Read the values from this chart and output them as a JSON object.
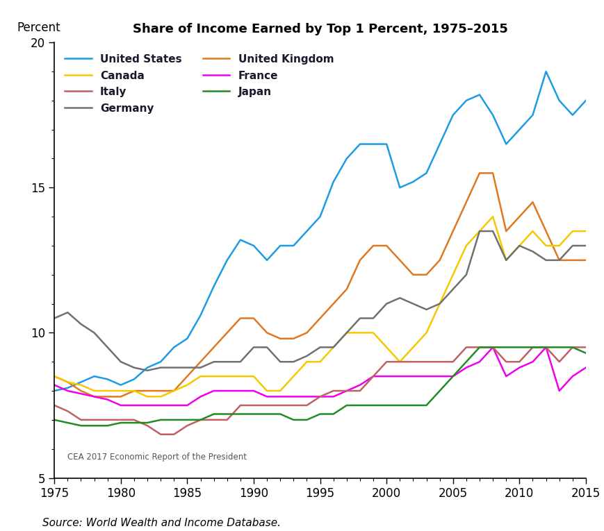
{
  "title": "Share of Income Earned by Top 1 Percent, 1975–2015",
  "ylabel": "Percent",
  "source": "Source: World Wealth and Income Database.",
  "watermark": "CEA 2017 Economic Report of the President",
  "annotation_2015": "2015",
  "ylim": [
    5,
    20
  ],
  "yticks": [
    5,
    10,
    15,
    20
  ],
  "xlim": [
    1975,
    2015
  ],
  "xticks": [
    1975,
    1980,
    1985,
    1990,
    1995,
    2000,
    2005,
    2010,
    2015
  ],
  "series": {
    "United States": {
      "color": "#1B9CE5",
      "years": [
        1975,
        1976,
        1977,
        1978,
        1979,
        1980,
        1981,
        1982,
        1983,
        1984,
        1985,
        1986,
        1987,
        1988,
        1989,
        1990,
        1991,
        1992,
        1993,
        1994,
        1995,
        1996,
        1997,
        1998,
        1999,
        2000,
        2001,
        2002,
        2003,
        2004,
        2005,
        2006,
        2007,
        2008,
        2009,
        2010,
        2011,
        2012,
        2013,
        2014,
        2015
      ],
      "values": [
        8.0,
        8.1,
        8.3,
        8.5,
        8.4,
        8.2,
        8.4,
        8.8,
        9.0,
        9.5,
        9.8,
        10.6,
        11.6,
        12.5,
        13.2,
        13.0,
        12.5,
        13.0,
        13.0,
        13.5,
        14.0,
        15.2,
        16.0,
        16.5,
        16.5,
        16.5,
        15.0,
        15.2,
        15.5,
        16.5,
        17.5,
        18.0,
        18.2,
        17.5,
        16.5,
        17.0,
        17.5,
        19.0,
        18.0,
        17.5,
        18.0
      ]
    },
    "United Kingdom": {
      "color": "#E07820",
      "years": [
        1975,
        1976,
        1977,
        1978,
        1979,
        1980,
        1981,
        1982,
        1983,
        1984,
        1985,
        1986,
        1987,
        1988,
        1989,
        1990,
        1991,
        1992,
        1993,
        1994,
        1995,
        1996,
        1997,
        1998,
        1999,
        2000,
        2001,
        2002,
        2003,
        2004,
        2005,
        2006,
        2007,
        2008,
        2009,
        2010,
        2011,
        2012,
        2013,
        2014,
        2015
      ],
      "values": [
        8.5,
        8.3,
        8.0,
        7.8,
        7.8,
        7.8,
        8.0,
        8.0,
        8.0,
        8.0,
        8.5,
        9.0,
        9.5,
        10.0,
        10.5,
        10.5,
        10.0,
        9.8,
        9.8,
        10.0,
        10.5,
        11.0,
        11.5,
        12.5,
        13.0,
        13.0,
        12.5,
        12.0,
        12.0,
        12.5,
        13.5,
        14.5,
        15.5,
        15.5,
        13.5,
        14.0,
        14.5,
        13.5,
        12.5,
        12.5,
        12.5
      ]
    },
    "Canada": {
      "color": "#F5C800",
      "years": [
        1975,
        1976,
        1977,
        1978,
        1979,
        1980,
        1981,
        1982,
        1983,
        1984,
        1985,
        1986,
        1987,
        1988,
        1989,
        1990,
        1991,
        1992,
        1993,
        1994,
        1995,
        1996,
        1997,
        1998,
        1999,
        2000,
        2001,
        2002,
        2003,
        2004,
        2005,
        2006,
        2007,
        2008,
        2009,
        2010,
        2011,
        2012,
        2013,
        2014,
        2015
      ],
      "values": [
        8.5,
        8.3,
        8.2,
        8.0,
        8.0,
        8.0,
        8.0,
        7.8,
        7.8,
        8.0,
        8.2,
        8.5,
        8.5,
        8.5,
        8.5,
        8.5,
        8.0,
        8.0,
        8.5,
        9.0,
        9.0,
        9.5,
        10.0,
        10.0,
        10.0,
        9.5,
        9.0,
        9.5,
        10.0,
        11.0,
        12.0,
        13.0,
        13.5,
        14.0,
        12.5,
        13.0,
        13.5,
        13.0,
        13.0,
        13.5,
        13.5
      ]
    },
    "France": {
      "color": "#EE00EE",
      "years": [
        1975,
        1976,
        1977,
        1978,
        1979,
        1980,
        1981,
        1982,
        1983,
        1984,
        1985,
        1986,
        1987,
        1988,
        1989,
        1990,
        1991,
        1992,
        1993,
        1994,
        1995,
        1996,
        1997,
        1998,
        1999,
        2000,
        2001,
        2002,
        2003,
        2004,
        2005,
        2006,
        2007,
        2008,
        2009,
        2010,
        2011,
        2012,
        2013,
        2014,
        2015
      ],
      "values": [
        8.2,
        8.0,
        7.9,
        7.8,
        7.7,
        7.5,
        7.5,
        7.5,
        7.5,
        7.5,
        7.5,
        7.8,
        8.0,
        8.0,
        8.0,
        8.0,
        7.8,
        7.8,
        7.8,
        7.8,
        7.8,
        7.8,
        8.0,
        8.2,
        8.5,
        8.5,
        8.5,
        8.5,
        8.5,
        8.5,
        8.5,
        8.8,
        9.0,
        9.5,
        8.5,
        8.8,
        9.0,
        9.5,
        8.0,
        8.5,
        8.8
      ]
    },
    "Italy": {
      "color": "#C06060",
      "years": [
        1975,
        1976,
        1977,
        1978,
        1979,
        1980,
        1981,
        1982,
        1983,
        1984,
        1985,
        1986,
        1987,
        1988,
        1989,
        1990,
        1991,
        1992,
        1993,
        1994,
        1995,
        1996,
        1997,
        1998,
        1999,
        2000,
        2001,
        2002,
        2003,
        2004,
        2005,
        2006,
        2007,
        2008,
        2009,
        2010,
        2011,
        2012,
        2013,
        2014,
        2015
      ],
      "values": [
        7.5,
        7.3,
        7.0,
        7.0,
        7.0,
        7.0,
        7.0,
        6.8,
        6.5,
        6.5,
        6.8,
        7.0,
        7.0,
        7.0,
        7.5,
        7.5,
        7.5,
        7.5,
        7.5,
        7.5,
        7.8,
        8.0,
        8.0,
        8.0,
        8.5,
        9.0,
        9.0,
        9.0,
        9.0,
        9.0,
        9.0,
        9.5,
        9.5,
        9.5,
        9.0,
        9.0,
        9.5,
        9.5,
        9.0,
        9.5,
        9.5
      ]
    },
    "Japan": {
      "color": "#228B22",
      "years": [
        1975,
        1976,
        1977,
        1978,
        1979,
        1980,
        1981,
        1982,
        1983,
        1984,
        1985,
        1986,
        1987,
        1988,
        1989,
        1990,
        1991,
        1992,
        1993,
        1994,
        1995,
        1996,
        1997,
        1998,
        1999,
        2000,
        2001,
        2002,
        2003,
        2004,
        2005,
        2006,
        2007,
        2008,
        2009,
        2010,
        2011,
        2012,
        2013,
        2014,
        2015
      ],
      "values": [
        7.0,
        6.9,
        6.8,
        6.8,
        6.8,
        6.9,
        6.9,
        6.9,
        7.0,
        7.0,
        7.0,
        7.0,
        7.2,
        7.2,
        7.2,
        7.2,
        7.2,
        7.2,
        7.0,
        7.0,
        7.2,
        7.2,
        7.5,
        7.5,
        7.5,
        7.5,
        7.5,
        7.5,
        7.5,
        8.0,
        8.5,
        9.0,
        9.5,
        9.5,
        9.5,
        9.5,
        9.5,
        9.5,
        9.5,
        9.5,
        9.3
      ]
    },
    "Germany": {
      "color": "#707070",
      "years": [
        1975,
        1976,
        1977,
        1978,
        1979,
        1980,
        1981,
        1982,
        1983,
        1984,
        1985,
        1986,
        1987,
        1988,
        1989,
        1990,
        1991,
        1992,
        1993,
        1994,
        1995,
        1996,
        1997,
        1998,
        1999,
        2000,
        2001,
        2002,
        2003,
        2004,
        2005,
        2006,
        2007,
        2008,
        2009,
        2010,
        2011,
        2012,
        2013,
        2014,
        2015
      ],
      "values": [
        10.5,
        10.7,
        10.3,
        10.0,
        9.5,
        9.0,
        8.8,
        8.7,
        8.8,
        8.8,
        8.8,
        8.8,
        9.0,
        9.0,
        9.0,
        9.5,
        9.5,
        9.0,
        9.0,
        9.2,
        9.5,
        9.5,
        10.0,
        10.5,
        10.5,
        11.0,
        11.2,
        11.0,
        10.8,
        11.0,
        11.5,
        12.0,
        13.5,
        13.5,
        12.5,
        13.0,
        12.8,
        12.5,
        12.5,
        13.0,
        13.0
      ]
    }
  }
}
